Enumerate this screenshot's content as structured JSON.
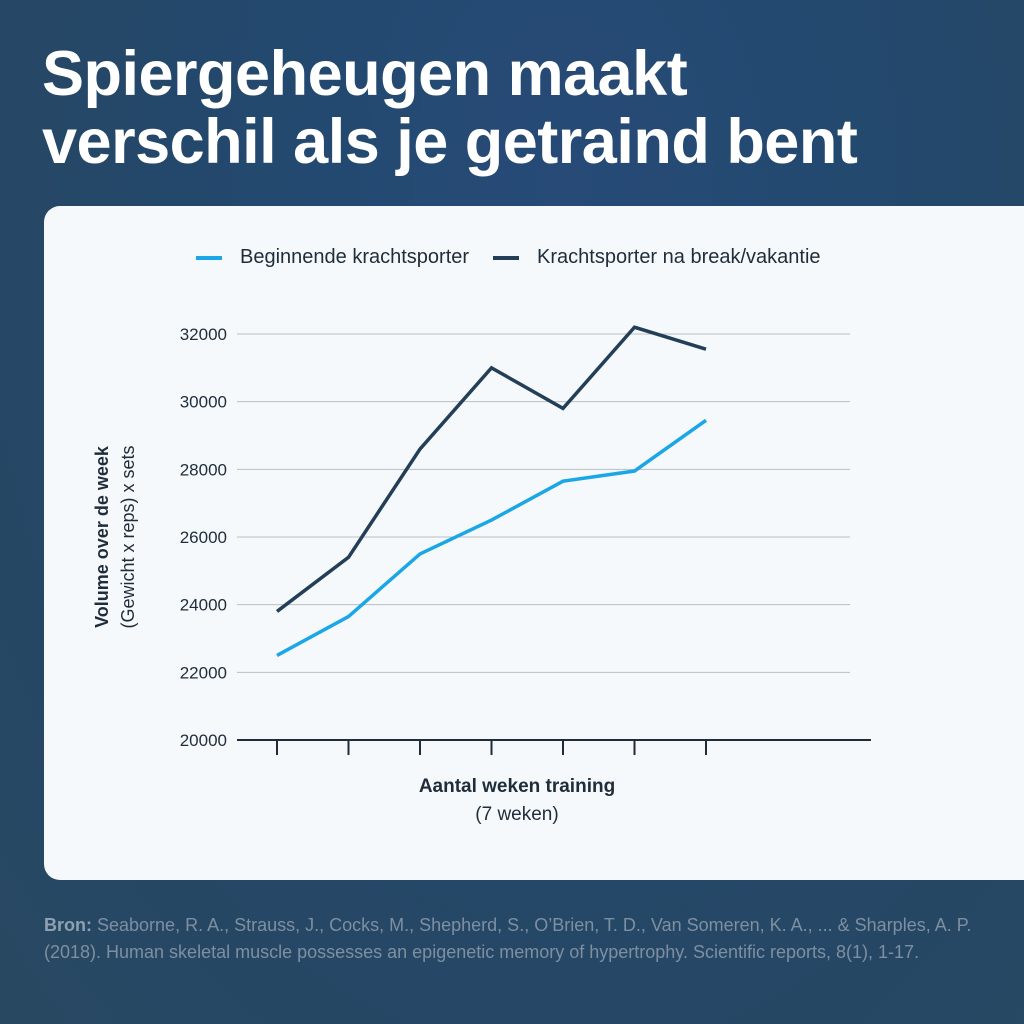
{
  "headline": {
    "line1": "Spiergeheugen maakt",
    "line2": "verschil als je getraind bent"
  },
  "source": {
    "label": "Bron:",
    "text": " Seaborne, R. A., Strauss, J., Cocks, M., Shepherd, S., O’Brien, T. D., Van Someren, K. A., ... & Sharples, A. P. (2018). Human skeletal muscle possesses an epigenetic memory of hypertrophy. Scientific reports, 8(1), 1-17."
  },
  "colors": {
    "beginner": "#1ba6e6",
    "trained": "#233f57",
    "grid": "#b8bec5",
    "axis": "#1f2d3a"
  },
  "chart_data": {
    "type": "line",
    "title": "",
    "xlabel": "Aantal weken training",
    "xlabel_sub": "(7 weken)",
    "ylabel": "Volume over de week",
    "ylabel_sub": "(Gewicht x reps) x sets",
    "x": [
      1,
      2,
      3,
      4,
      5,
      6,
      7
    ],
    "ylim": [
      20000,
      32000
    ],
    "yticks": [
      20000,
      22000,
      24000,
      26000,
      28000,
      30000,
      32000
    ],
    "ytick_labels": [
      "20000",
      "22000",
      "24000",
      "26000",
      "28000",
      "30000",
      "32000"
    ],
    "grid": true,
    "legend_position": "top",
    "series": [
      {
        "name": "Beginnende krachtsporter",
        "color": "#1ba6e6",
        "values": [
          22500,
          23650,
          25500,
          26500,
          27650,
          27950,
          29450
        ]
      },
      {
        "name": "Krachtsporter na break/vakantie",
        "color": "#233f57",
        "values": [
          23800,
          25400,
          28600,
          31000,
          29800,
          32200,
          31550
        ]
      }
    ]
  }
}
